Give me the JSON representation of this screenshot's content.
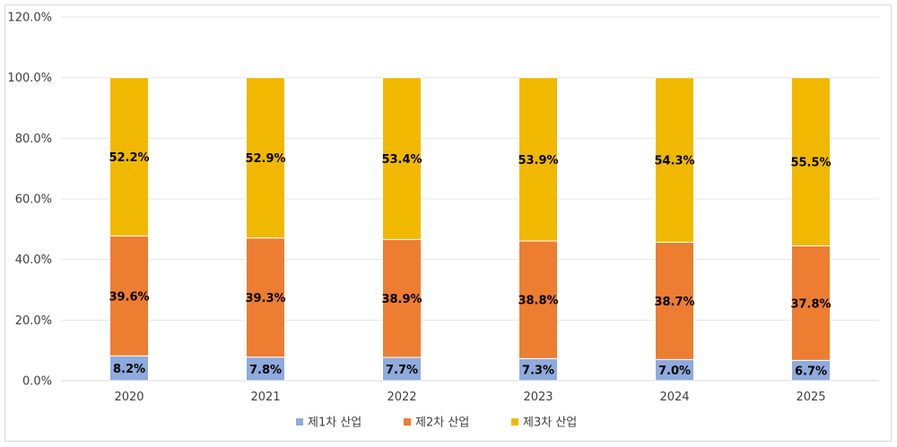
{
  "chart_data": {
    "type": "bar",
    "stacked": true,
    "categories": [
      "2020",
      "2021",
      "2022",
      "2023",
      "2024",
      "2025"
    ],
    "series": [
      {
        "name": "제1차 산업",
        "values": [
          8.2,
          7.8,
          7.7,
          7.3,
          7.0,
          6.7
        ],
        "labels": [
          "8.2%",
          "7.8%",
          "7.7%",
          "7.3%",
          "7.0%",
          "6.7%"
        ],
        "color": "#8faadc"
      },
      {
        "name": "제2차 산업",
        "values": [
          39.6,
          39.3,
          38.9,
          38.8,
          38.7,
          37.8
        ],
        "labels": [
          "39.6%",
          "39.3%",
          "38.9%",
          "38.8%",
          "38.7%",
          "37.8%"
        ],
        "color": "#ed7d31"
      },
      {
        "name": "제3차 산업",
        "values": [
          52.2,
          52.9,
          53.4,
          53.9,
          54.3,
          55.5
        ],
        "labels": [
          "52.2%",
          "52.9%",
          "53.4%",
          "53.9%",
          "54.3%",
          "55.5%"
        ],
        "color": "#f0b800"
      }
    ],
    "yticks": [
      "0.0%",
      "20.0%",
      "40.0%",
      "60.0%",
      "80.0%",
      "100.0%",
      "120.0%"
    ],
    "ylim": [
      0,
      120
    ],
    "grid": true,
    "legend_position": "bottom"
  }
}
